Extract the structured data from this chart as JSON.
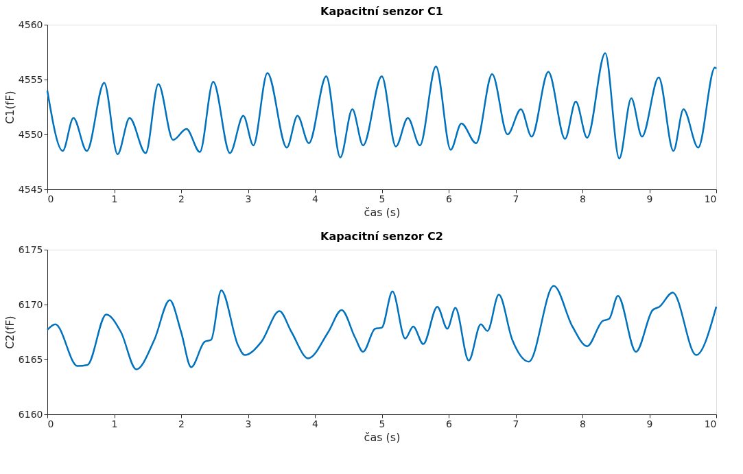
{
  "chart_data": [
    {
      "type": "line",
      "title": "Kapacitní senzor C1",
      "xlabel": "čas (s)",
      "ylabel": "C1(fF)",
      "xlim": [
        0,
        10
      ],
      "xticks": [
        0,
        1,
        2,
        3,
        4,
        5,
        6,
        7,
        8,
        9,
        10
      ],
      "ylim": [
        4545,
        4560
      ],
      "yticks": [
        4545,
        4550,
        4555,
        4560
      ],
      "grid": false,
      "line_style": "solid",
      "x": [
        0,
        0.23,
        0.39,
        0.59,
        0.85,
        1.05,
        1.23,
        1.47,
        1.66,
        1.88,
        2.08,
        2.28,
        2.48,
        2.73,
        2.93,
        3.08,
        3.29,
        3.58,
        3.74,
        3.91,
        4.17,
        4.38,
        4.56,
        4.72,
        5.0,
        5.21,
        5.39,
        5.57,
        5.81,
        6.03,
        6.19,
        6.41,
        6.65,
        6.88,
        7.08,
        7.24,
        7.49,
        7.74,
        7.9,
        8.07,
        8.34,
        8.55,
        8.73,
        8.89,
        9.14,
        9.36,
        9.51,
        9.73,
        9.98,
        10
      ],
      "series": [
        {
          "color": "#0072bd",
          "values": [
            4554.0,
            4548.5,
            4551.5,
            4548.5,
            4554.7,
            4548.2,
            4551.5,
            4548.3,
            4554.6,
            4549.5,
            4550.5,
            4548.4,
            4554.8,
            4548.3,
            4551.7,
            4549.0,
            4555.6,
            4548.8,
            4551.7,
            4549.2,
            4555.3,
            4547.9,
            4552.3,
            4549.0,
            4555.3,
            4548.9,
            4551.5,
            4549.0,
            4556.2,
            4548.6,
            4551.0,
            4549.2,
            4555.5,
            4550.0,
            4552.3,
            4549.8,
            4555.7,
            4549.6,
            4553.0,
            4549.7,
            4557.4,
            4547.8,
            4553.3,
            4549.8,
            4555.2,
            4548.5,
            4552.3,
            4548.8,
            4556.1,
            4556.0
          ]
        }
      ]
    },
    {
      "type": "line",
      "title": "Kapacitní senzor C2",
      "xlabel": "čas (s)",
      "ylabel": "C2(fF)",
      "xlim": [
        0,
        10
      ],
      "xticks": [
        0,
        1,
        2,
        3,
        4,
        5,
        6,
        7,
        8,
        9,
        10
      ],
      "ylim": [
        6160,
        6175
      ],
      "yticks": [
        6160,
        6165,
        6170,
        6175
      ],
      "grid": false,
      "line_style": "solid",
      "x": [
        0,
        0.12,
        0.45,
        0.6,
        0.88,
        1.1,
        1.33,
        1.6,
        1.83,
        2.0,
        2.15,
        2.35,
        2.45,
        2.6,
        2.85,
        2.95,
        3.2,
        3.47,
        3.65,
        3.9,
        4.2,
        4.4,
        4.6,
        4.72,
        4.9,
        5.0,
        5.16,
        5.35,
        5.47,
        5.62,
        5.83,
        5.98,
        6.1,
        6.3,
        6.48,
        6.58,
        6.75,
        6.95,
        7.2,
        7.57,
        7.85,
        8.07,
        8.3,
        8.4,
        8.53,
        8.8,
        9.05,
        9.15,
        9.35,
        9.7,
        10
      ],
      "series": [
        {
          "color": "#0072bd",
          "values": [
            6167.7,
            6168.2,
            6164.4,
            6164.5,
            6169.1,
            6167.5,
            6164.1,
            6166.8,
            6170.4,
            6167.5,
            6164.3,
            6166.6,
            6166.8,
            6171.3,
            6166.3,
            6165.4,
            6166.6,
            6169.4,
            6167.5,
            6165.1,
            6167.5,
            6169.5,
            6167.0,
            6165.7,
            6167.8,
            6167.9,
            6171.2,
            6166.9,
            6168.0,
            6166.4,
            6169.8,
            6167.8,
            6169.7,
            6164.9,
            6168.2,
            6167.6,
            6170.9,
            6166.8,
            6164.8,
            6171.7,
            6168.0,
            6166.2,
            6168.5,
            6168.7,
            6170.8,
            6165.7,
            6169.5,
            6169.8,
            6171.1,
            6165.4,
            6169.8
          ]
        }
      ]
    }
  ]
}
